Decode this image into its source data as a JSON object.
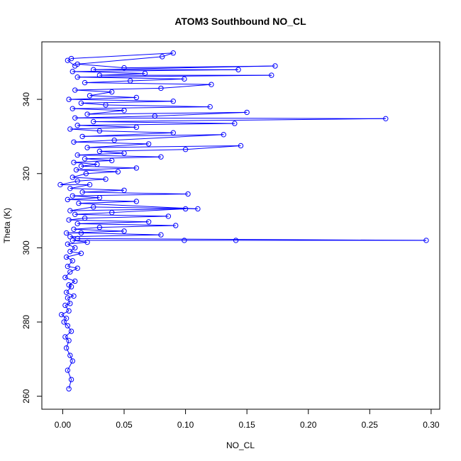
{
  "chart_data": {
    "type": "scatter",
    "title": "ATOM3 Southbound NO_CL",
    "xlabel": "NO_CL",
    "ylabel": "Theta (K)",
    "xlim": [
      -0.017,
      0.307
    ],
    "ylim": [
      256.5,
      355.5
    ],
    "x_ticks": [
      0.0,
      0.05,
      0.1,
      0.15,
      0.2,
      0.25,
      0.3
    ],
    "x_tick_labels": [
      "0.00",
      "0.05",
      "0.10",
      "0.15",
      "0.20",
      "0.25",
      "0.30"
    ],
    "y_ticks": [
      260,
      280,
      300,
      320,
      340
    ],
    "y_tick_labels": [
      "260",
      "280",
      "300",
      "320",
      "340"
    ],
    "grid": false,
    "legend": "none",
    "series_color": "#0000ff",
    "marker": "open-circle",
    "connected": true,
    "series": [
      {
        "points": [
          [
            0.005,
            262.0
          ],
          [
            0.007,
            264.5
          ],
          [
            0.004,
            267.0
          ],
          [
            0.008,
            269.5
          ],
          [
            0.006,
            271.0
          ],
          [
            0.003,
            273.0
          ],
          [
            0.005,
            275.0
          ],
          [
            0.002,
            276.0
          ],
          [
            0.007,
            277.5
          ],
          [
            0.004,
            279.0
          ],
          [
            0.001,
            280.0
          ],
          [
            0.003,
            281.0
          ],
          [
            -0.001,
            282.0
          ],
          [
            0.005,
            283.0
          ],
          [
            0.002,
            284.5
          ],
          [
            0.006,
            285.0
          ],
          [
            0.004,
            286.5
          ],
          [
            0.009,
            287.0
          ],
          [
            0.003,
            288.0
          ],
          [
            0.007,
            289.5
          ],
          [
            0.005,
            290.0
          ],
          [
            0.01,
            291.0
          ],
          [
            0.002,
            292.0
          ],
          [
            0.006,
            293.5
          ],
          [
            0.012,
            294.5
          ],
          [
            0.004,
            295.0
          ],
          [
            0.008,
            296.5
          ],
          [
            0.003,
            297.5
          ],
          [
            0.015,
            298.5
          ],
          [
            0.006,
            299.0
          ],
          [
            0.01,
            300.0
          ],
          [
            0.004,
            301.0
          ],
          [
            0.02,
            301.5
          ],
          [
            0.008,
            302.0
          ],
          [
            0.099,
            302.0
          ],
          [
            0.141,
            302.0
          ],
          [
            0.296,
            302.0
          ],
          [
            0.012,
            302.5
          ],
          [
            0.006,
            303.0
          ],
          [
            0.08,
            303.5
          ],
          [
            0.015,
            304.0
          ],
          [
            0.003,
            304.0
          ],
          [
            0.05,
            304.5
          ],
          [
            0.009,
            305.0
          ],
          [
            0.03,
            305.5
          ],
          [
            0.092,
            306.0
          ],
          [
            0.012,
            306.5
          ],
          [
            0.07,
            307.0
          ],
          [
            0.005,
            307.5
          ],
          [
            0.018,
            308.0
          ],
          [
            0.086,
            308.5
          ],
          [
            0.01,
            309.0
          ],
          [
            0.04,
            309.5
          ],
          [
            0.1,
            310.5
          ],
          [
            0.006,
            310.0
          ],
          [
            0.025,
            311.0
          ],
          [
            0.11,
            310.5
          ],
          [
            0.013,
            312.0
          ],
          [
            0.06,
            312.5
          ],
          [
            0.004,
            313.0
          ],
          [
            0.03,
            313.5
          ],
          [
            0.008,
            314.0
          ],
          [
            0.102,
            314.5
          ],
          [
            0.016,
            315.0
          ],
          [
            0.05,
            315.5
          ],
          [
            0.006,
            316.0
          ],
          [
            0.022,
            317.0
          ],
          [
            -0.002,
            317.0
          ],
          [
            0.012,
            318.0
          ],
          [
            0.035,
            318.5
          ],
          [
            0.008,
            319.0
          ],
          [
            0.019,
            320.0
          ],
          [
            0.045,
            320.5
          ],
          [
            0.011,
            321.0
          ],
          [
            0.06,
            321.5
          ],
          [
            0.015,
            322.0
          ],
          [
            0.028,
            322.5
          ],
          [
            0.009,
            323.0
          ],
          [
            0.04,
            323.5
          ],
          [
            0.018,
            324.0
          ],
          [
            0.08,
            324.5
          ],
          [
            0.012,
            325.0
          ],
          [
            0.05,
            325.5
          ],
          [
            0.03,
            326.0
          ],
          [
            0.1,
            326.5
          ],
          [
            0.145,
            327.5
          ],
          [
            0.02,
            327.0
          ],
          [
            0.07,
            328.0
          ],
          [
            0.009,
            328.5
          ],
          [
            0.042,
            329.0
          ],
          [
            0.131,
            330.5
          ],
          [
            0.016,
            330.0
          ],
          [
            0.09,
            331.0
          ],
          [
            0.03,
            331.5
          ],
          [
            0.006,
            332.0
          ],
          [
            0.06,
            332.5
          ],
          [
            0.012,
            333.0
          ],
          [
            0.14,
            333.5
          ],
          [
            0.025,
            334.0
          ],
          [
            0.263,
            334.8
          ],
          [
            0.01,
            335.0
          ],
          [
            0.075,
            335.5
          ],
          [
            0.15,
            336.5
          ],
          [
            0.02,
            336.0
          ],
          [
            0.05,
            337.0
          ],
          [
            0.008,
            337.5
          ],
          [
            0.12,
            338.0
          ],
          [
            0.035,
            338.5
          ],
          [
            0.015,
            339.0
          ],
          [
            0.09,
            339.5
          ],
          [
            0.005,
            340.0
          ],
          [
            0.06,
            340.5
          ],
          [
            0.022,
            341.0
          ],
          [
            0.04,
            342.0
          ],
          [
            0.01,
            342.5
          ],
          [
            0.08,
            343.0
          ],
          [
            0.121,
            344.0
          ],
          [
            0.018,
            344.5
          ],
          [
            0.055,
            345.0
          ],
          [
            0.099,
            345.5
          ],
          [
            0.012,
            346.0
          ],
          [
            0.17,
            346.5
          ],
          [
            0.03,
            346.5
          ],
          [
            0.067,
            347.0
          ],
          [
            0.008,
            347.5
          ],
          [
            0.143,
            348.0
          ],
          [
            0.025,
            348.0
          ],
          [
            0.173,
            349.0
          ],
          [
            0.05,
            348.5
          ],
          [
            0.012,
            349.5
          ],
          [
            0.081,
            351.5
          ],
          [
            0.09,
            352.5
          ],
          [
            0.007,
            351.0
          ],
          [
            0.004,
            350.5
          ],
          [
            0.01,
            349.0
          ]
        ]
      }
    ]
  }
}
